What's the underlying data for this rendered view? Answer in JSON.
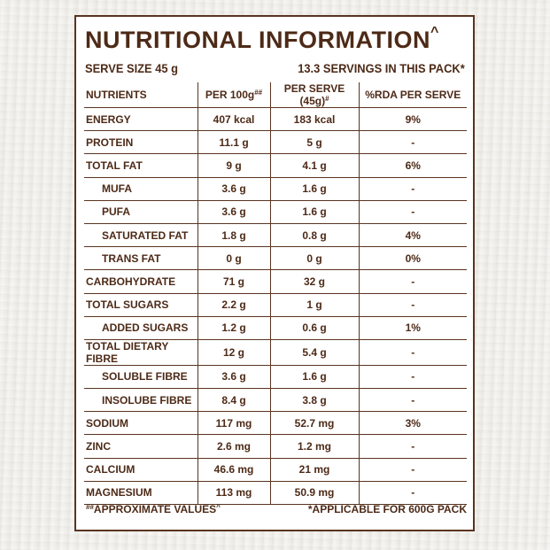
{
  "title": "NUTRITIONAL INFORMATION",
  "title_mark": "^",
  "serve_size": "SERVE SIZE 45 g",
  "servings": "13.3 SERVINGS IN THIS PACK*",
  "headers": {
    "nutrients": "NUTRIENTS",
    "per100": "PER 100g",
    "per100_mark": "##",
    "perserve": "PER SERVE (45g)",
    "perserve_mark": "#",
    "rda": "%RDA PER SERVE"
  },
  "rows": [
    {
      "name": "ENERGY",
      "per100": "407 kcal",
      "perserve": "183 kcal",
      "rda": "9%"
    },
    {
      "name": "PROTEIN",
      "per100": "11.1 g",
      "perserve": "5 g",
      "rda": "-"
    },
    {
      "name": "TOTAL FAT",
      "per100": "9 g",
      "perserve": "4.1 g",
      "rda": "6%"
    },
    {
      "name": "MUFA",
      "per100": "3.6 g",
      "perserve": "1.6 g",
      "rda": "-"
    },
    {
      "name": "PUFA",
      "per100": "3.6 g",
      "perserve": "1.6 g",
      "rda": "-"
    },
    {
      "name": "SATURATED FAT",
      "per100": "1.8 g",
      "perserve": "0.8 g",
      "rda": "4%"
    },
    {
      "name": "TRANS FAT",
      "per100": "0 g",
      "perserve": "0 g",
      "rda": "0%"
    },
    {
      "name": "CARBOHYDRATE",
      "per100": "71 g",
      "perserve": "32 g",
      "rda": "-"
    },
    {
      "name": "TOTAL SUGARS",
      "per100": "2.2 g",
      "perserve": "1 g",
      "rda": "-"
    },
    {
      "name": "ADDED SUGARS",
      "per100": "1.2 g",
      "perserve": "0.6 g",
      "rda": "1%"
    },
    {
      "name": "TOTAL DIETARY FIBRE",
      "per100": "12 g",
      "perserve": "5.4 g",
      "rda": "-"
    },
    {
      "name": "SOLUBLE FIBRE",
      "per100": "3.6 g",
      "perserve": "1.6 g",
      "rda": "-"
    },
    {
      "name": "INSOLUBE FIBRE",
      "per100": "8.4 g",
      "perserve": "3.8 g",
      "rda": "-"
    },
    {
      "name": "SODIUM",
      "per100": "117 mg",
      "perserve": "52.7 mg",
      "rda": "3%"
    },
    {
      "name": "ZINC",
      "per100": "2.6 mg",
      "perserve": "1.2 mg",
      "rda": "-"
    },
    {
      "name": "CALCIUM",
      "per100": "46.6 mg",
      "perserve": "21 mg",
      "rda": "-"
    },
    {
      "name": "MAGNESIUM",
      "per100": "113 mg",
      "perserve": "50.9 mg",
      "rda": "-"
    }
  ],
  "footer": {
    "left_mark": "##",
    "left": "APPROXIMATE VALUES",
    "left_end": "^",
    "right": "*APPLICABLE FOR 600G PACK"
  },
  "colors": {
    "text": "#4d2a17",
    "border": "#5a3420",
    "background": "#ecebe6"
  }
}
